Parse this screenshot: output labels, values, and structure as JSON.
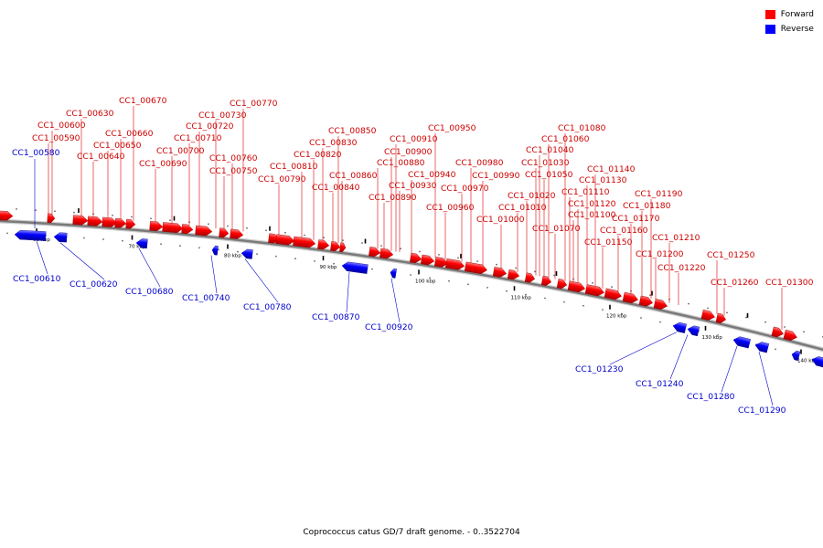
{
  "legend": {
    "forward_label": "Forward",
    "reverse_label": "Reverse",
    "forward_color": "#ff0000",
    "reverse_color": "#0000ff"
  },
  "colors": {
    "forward_label": "#cc0000",
    "reverse_label": "#0000cc",
    "backbone": "#888888"
  },
  "caption": "Coprococcus catus GD/7 draft genome. - 0..3522704",
  "axis": {
    "unit": "kbp",
    "ticks_kbp": [
      60,
      70,
      80,
      90,
      100,
      110,
      120,
      130,
      140
    ],
    "tick_labels": [
      "60 kbp",
      "70 kbp",
      "80 kbp",
      "90 kbp",
      "100 kbp",
      "110 kbp",
      "120 kbp",
      "130 kbp",
      "140 kbp"
    ]
  },
  "forward_genes": [
    "CC1_00590",
    "CC1_00600",
    "CC1_00630",
    "CC1_00640",
    "CC1_00650",
    "CC1_00660",
    "CC1_00670",
    "CC1_00690",
    "CC1_00700",
    "CC1_00710",
    "CC1_00720",
    "CC1_00730",
    "CC1_00750",
    "CC1_00760",
    "CC1_00770",
    "CC1_00790",
    "CC1_00810",
    "CC1_00820",
    "CC1_00830",
    "CC1_00840",
    "CC1_00850",
    "CC1_00860",
    "CC1_00880",
    "CC1_00890",
    "CC1_00900",
    "CC1_00910",
    "CC1_00930",
    "CC1_00940",
    "CC1_00950",
    "CC1_00960",
    "CC1_00970",
    "CC1_00980",
    "CC1_00990",
    "CC1_01000",
    "CC1_01010",
    "CC1_01020",
    "CC1_01030",
    "CC1_01040",
    "CC1_01050",
    "CC1_01060",
    "CC1_01070",
    "CC1_01080",
    "CC1_01100",
    "CC1_01110",
    "CC1_01120",
    "CC1_01130",
    "CC1_01140",
    "CC1_01150",
    "CC1_01160",
    "CC1_01170",
    "CC1_01180",
    "CC1_01190",
    "CC1_01200",
    "CC1_01210",
    "CC1_01220",
    "CC1_01250",
    "CC1_01260",
    "CC1_01300"
  ],
  "reverse_genes": [
    "CC1_00580",
    "CC1_00610",
    "CC1_00620",
    "CC1_00680",
    "CC1_00740",
    "CC1_00780",
    "CC1_00870",
    "CC1_00920",
    "CC1_01230",
    "CC1_01240",
    "CC1_01280",
    "CC1_01290"
  ]
}
